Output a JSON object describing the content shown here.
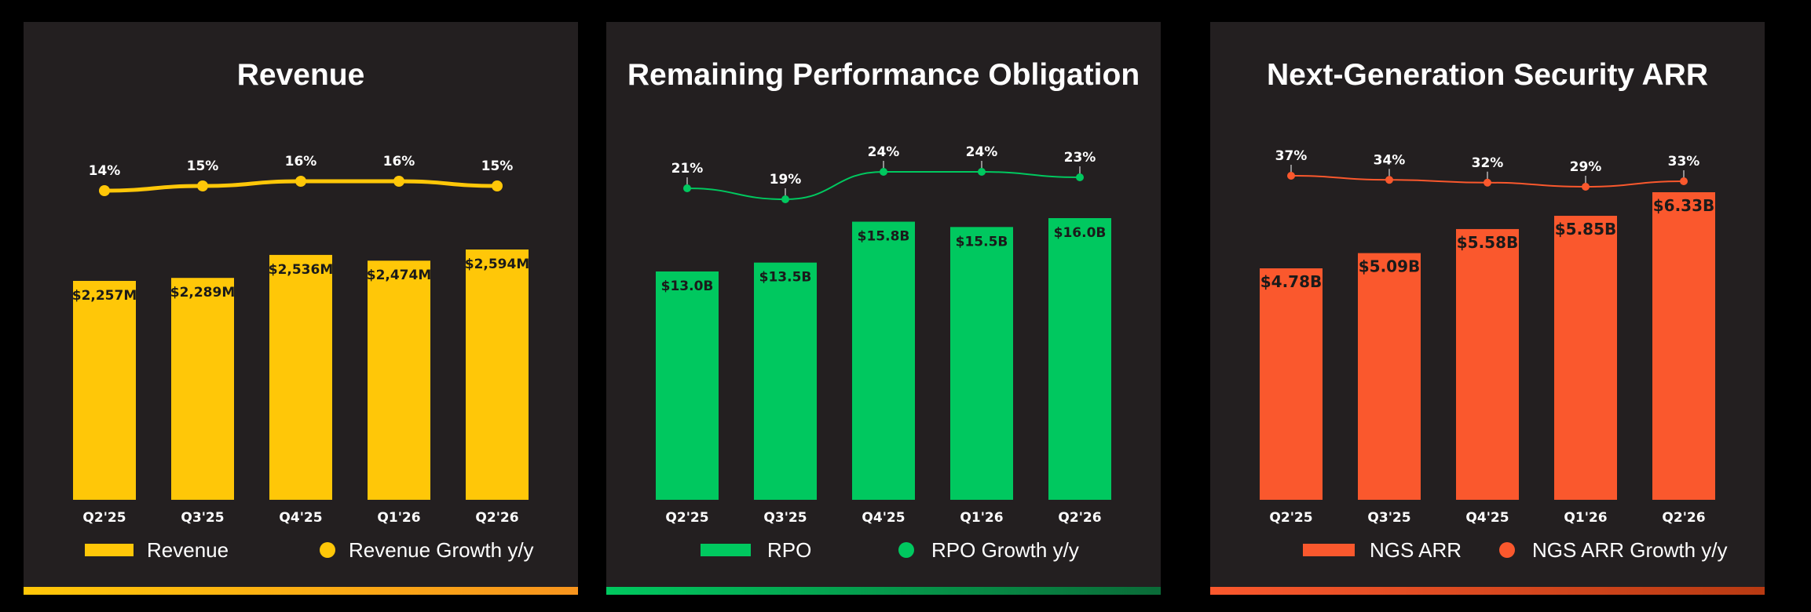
{
  "chart_data": [
    {
      "type": "bar",
      "title": "Revenue",
      "categories": [
        "Q2'25",
        "Q3'25",
        "Q4'25",
        "Q1'26",
        "Q2'26"
      ],
      "series": [
        {
          "name": "Revenue",
          "values": [
            2257,
            2289,
            2536,
            2474,
            2594
          ],
          "labels": [
            "$2,257M",
            "$2,289M",
            "$2,536M",
            "$2,474M",
            "$2,594M"
          ]
        },
        {
          "name": "Revenue Growth y/y",
          "values": [
            14,
            15,
            16,
            16,
            15
          ],
          "labels": [
            "14%",
            "15%",
            "16%",
            "16%",
            "15%"
          ]
        }
      ],
      "color": "#ffc708",
      "stripe": [
        "#ffc708",
        "#f7941d"
      ],
      "line_style": "thick",
      "bar_font": 17,
      "legend": [
        "Revenue",
        "Revenue Growth y/y"
      ]
    },
    {
      "type": "bar",
      "title": "Remaining Performance Obligation",
      "categories": [
        "Q2'25",
        "Q3'25",
        "Q4'25",
        "Q1'26",
        "Q2'26"
      ],
      "series": [
        {
          "name": "RPO",
          "values": [
            13.0,
            13.5,
            15.8,
            15.5,
            16.0
          ],
          "labels": [
            "$13.0B",
            "$13.5B",
            "$15.8B",
            "$15.5B",
            "$16.0B"
          ]
        },
        {
          "name": "RPO Growth y/y",
          "values": [
            21,
            19,
            24,
            24,
            23
          ],
          "labels": [
            "21%",
            "19%",
            "24%",
            "24%",
            "23%"
          ]
        }
      ],
      "color": "#00c85f",
      "stripe": [
        "#00c85f",
        "#0a6b38"
      ],
      "line_style": "thin",
      "bar_font": 17,
      "legend": [
        "RPO",
        "RPO Growth y/y"
      ]
    },
    {
      "type": "bar",
      "title": "Next-Generation Security ARR",
      "categories": [
        "Q2'25",
        "Q3'25",
        "Q4'25",
        "Q1'26",
        "Q2'26"
      ],
      "series": [
        {
          "name": "NGS ARR",
          "values": [
            4.78,
            5.09,
            5.58,
            5.85,
            6.33
          ],
          "labels": [
            "$4.78B",
            "$5.09B",
            "$5.58B",
            "$5.85B",
            "$6.33B"
          ]
        },
        {
          "name": "NGS ARR Growth y/y",
          "values": [
            37,
            34,
            32,
            29,
            33
          ],
          "labels": [
            "37%",
            "34%",
            "32%",
            "29%",
            "33%"
          ]
        }
      ],
      "color": "#fa582d",
      "stripe": [
        "#fa582d",
        "#b83a12"
      ],
      "line_style": "thin",
      "bar_font": 20,
      "legend": [
        "NGS ARR",
        "NGS ARR Growth y/y"
      ]
    }
  ]
}
